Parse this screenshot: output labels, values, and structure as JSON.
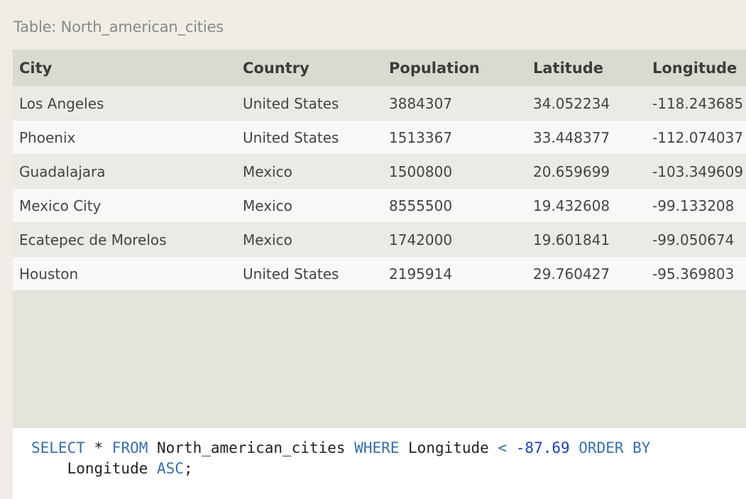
{
  "caption": "Table: North_american_cities",
  "table": {
    "columns": [
      "City",
      "Country",
      "Population",
      "Latitude",
      "Longitude"
    ],
    "rows": [
      [
        "Los Angeles",
        "United States",
        "3884307",
        "34.052234",
        "-118.243685"
      ],
      [
        "Phoenix",
        "United States",
        "1513367",
        "33.448377",
        "-112.074037"
      ],
      [
        "Guadalajara",
        "Mexico",
        "1500800",
        "20.659699",
        "-103.349609"
      ],
      [
        "Mexico City",
        "Mexico",
        "8555500",
        "19.432608",
        "-99.133208"
      ],
      [
        "Ecatepec de Morelos",
        "Mexico",
        "1742000",
        "19.601841",
        "-99.050674"
      ],
      [
        "Houston",
        "United States",
        "2195914",
        "29.760427",
        "-95.369803"
      ]
    ]
  },
  "query": {
    "kw_select": "SELECT",
    "star": " * ",
    "kw_from": "FROM",
    "table_name": " North_american_cities ",
    "kw_where": "WHERE",
    "column": " Longitude ",
    "op": "<",
    "space": " ",
    "value": "-87.69",
    "kw_order_by": " ORDER BY",
    "indent": "    Longitude ",
    "kw_asc": "ASC",
    "terminator": ";"
  },
  "colors": {
    "keyword": "#3a6ea5",
    "number": "#1a3fb0",
    "header_bg": "#dadad0"
  }
}
